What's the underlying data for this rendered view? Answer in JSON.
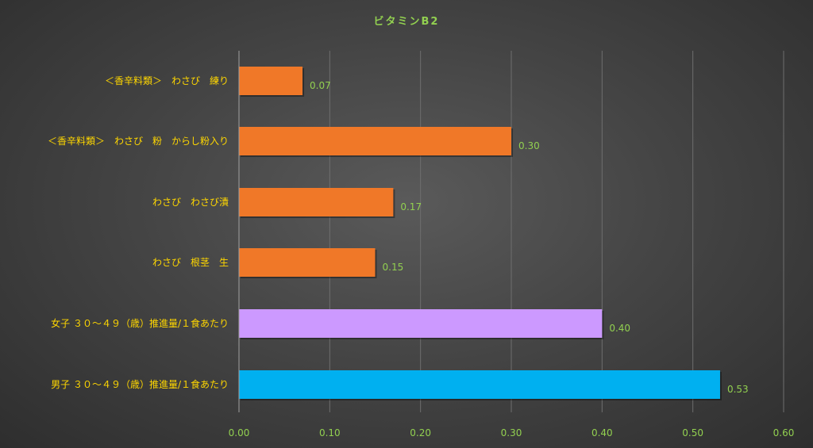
{
  "chart_data": {
    "type": "bar",
    "orientation": "horizontal",
    "title": "ビタミンB2",
    "categories": [
      "＜香辛料類＞　わさび　練り",
      "＜香辛料類＞　わさび　粉　からし粉入り",
      "わさび　わさび漬",
      "わさび　根茎　生",
      "女子 ３０～４９（歳）推進量/１食あたり",
      "男子 ３０～４９（歳）推進量/１食あたり"
    ],
    "values": [
      0.07,
      0.3,
      0.17,
      0.15,
      0.4,
      0.53
    ],
    "value_labels": [
      "0.07",
      "0.30",
      "0.17",
      "0.15",
      "0.40",
      "0.53"
    ],
    "bar_colors": [
      "#f07828",
      "#f07828",
      "#f07828",
      "#f07828",
      "#cc99ff",
      "#00b0f0"
    ],
    "xlim": [
      0,
      0.6
    ],
    "xticks": [
      "0.00",
      "0.10",
      "0.20",
      "0.30",
      "0.40",
      "0.50",
      "0.60"
    ],
    "xlabel": "",
    "ylabel": "",
    "grid": true,
    "legend": "none",
    "colors": {
      "title": "#92d050",
      "category_labels": "#ffd700",
      "tick_labels": "#92d050",
      "data_labels": "#92d050"
    }
  }
}
